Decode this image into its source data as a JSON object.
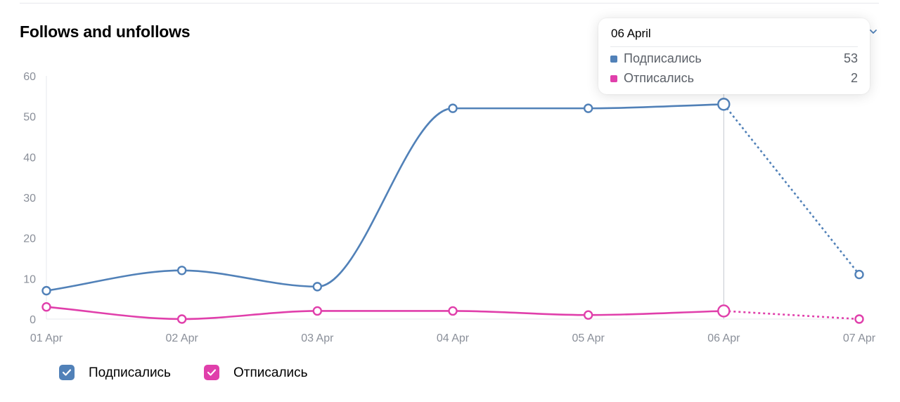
{
  "title": "Follows and unfollows",
  "tooltip": {
    "date": "06 April",
    "rows": [
      {
        "name": "Подписались",
        "value": "53"
      },
      {
        "name": "Отписались",
        "value": "2"
      }
    ]
  },
  "legend": [
    {
      "label": "Подписались",
      "checked": true
    },
    {
      "label": "Отписались",
      "checked": true
    }
  ],
  "colors": {
    "follows": "#5181b8",
    "unfollows": "#e03fab",
    "axis": "#8a8f99"
  },
  "chart_data": {
    "type": "line",
    "title": "Follows and unfollows",
    "x": [
      "01 Apr",
      "02 Apr",
      "03 Apr",
      "04 Apr",
      "05 Apr",
      "06 Apr",
      "07 Apr"
    ],
    "ylim": [
      0,
      60
    ],
    "yticks": [
      0,
      10,
      20,
      30,
      40,
      50,
      60
    ],
    "highlighted_x": "06 Apr",
    "dashed_from": "06 Apr",
    "series": [
      {
        "name": "Подписались",
        "values": [
          7,
          12,
          8,
          52,
          52,
          53,
          11
        ]
      },
      {
        "name": "Отписались",
        "values": [
          3,
          0,
          2,
          2,
          1,
          2,
          0
        ]
      }
    ],
    "legend_position": "bottom-left",
    "grid": false
  }
}
